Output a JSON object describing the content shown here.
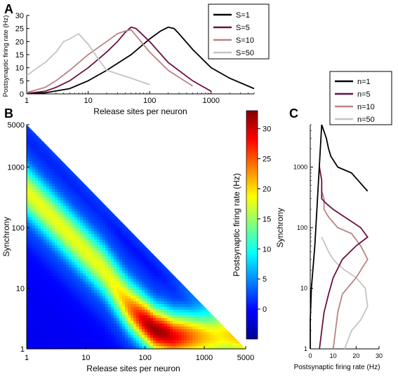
{
  "chart_data": [
    {
      "id": "A",
      "type": "line",
      "panel_label": "A",
      "xlabel": "Release sites per neuron",
      "ylabel": "Postsynaptic firing rate (Hz)",
      "x_scale": "log",
      "xlim": [
        1,
        5000
      ],
      "ylim": [
        0,
        30
      ],
      "xticks": [
        1,
        10,
        100,
        1000
      ],
      "yticks": [
        0,
        5,
        10,
        15,
        20,
        25,
        30
      ],
      "legend_position": "top-right",
      "series": [
        {
          "name": "S=1",
          "color": "#000000",
          "x": [
            1,
            2,
            5,
            10,
            20,
            50,
            100,
            150,
            200,
            250,
            300,
            500,
            1000,
            2000,
            5000
          ],
          "y": [
            0.1,
            0.4,
            2,
            5,
            9,
            15,
            21,
            24,
            25.5,
            25,
            23,
            17,
            10,
            6,
            2
          ]
        },
        {
          "name": "S=5",
          "color": "#6b1040",
          "x": [
            1,
            2,
            3,
            5,
            10,
            20,
            30,
            40,
            50,
            60,
            100,
            200,
            500,
            1000
          ],
          "y": [
            0.2,
            1,
            2.5,
            5,
            10,
            16,
            20,
            23.5,
            25.5,
            25,
            20,
            12,
            5,
            1
          ]
        },
        {
          "name": "S=10",
          "color": "#b88484",
          "x": [
            1,
            2,
            3,
            5,
            10,
            20,
            30,
            40,
            50,
            100,
            200,
            500
          ],
          "y": [
            0.5,
            2.5,
            5,
            9,
            15,
            20,
            23,
            24,
            24.5,
            16,
            9,
            3
          ]
        },
        {
          "name": "S=50",
          "color": "#c4c4c4",
          "x": [
            1,
            1.5,
            2,
            3,
            4,
            5,
            7,
            10,
            15,
            20,
            50,
            100
          ],
          "y": [
            7,
            10,
            12,
            16,
            20,
            21,
            23,
            19,
            13,
            9,
            6,
            3.5
          ]
        }
      ]
    },
    {
      "id": "B",
      "type": "heatmap",
      "panel_label": "B",
      "xlabel": "Release sites per neuron",
      "ylabel": "Synchrony",
      "colorbar_label": "Postsynaptic firing rate (Hz)",
      "x_scale": "log",
      "y_scale": "log",
      "xlim": [
        1,
        5000
      ],
      "ylim": [
        1,
        5000
      ],
      "xticks": [
        "1",
        "10",
        "100",
        "1000",
        "5000"
      ],
      "yticks": [
        "1",
        "10",
        "100",
        "1000",
        "5000"
      ],
      "colorbar_ticks": [
        0,
        5,
        10,
        15,
        20,
        25,
        30
      ],
      "colorbar_range": [
        -5,
        33
      ],
      "colormap": "jet",
      "domain": "release sites × synchrony ≤ 5000 (lower-left triangle)",
      "ridge": {
        "x": [
          1,
          2,
          5,
          10,
          20,
          50,
          100,
          150,
          200,
          300
        ],
        "y": [
          400,
          200,
          80,
          40,
          20,
          6,
          3,
          2,
          1.8,
          1.5
        ]
      },
      "peak": {
        "x": 150,
        "y": 2,
        "value": 31
      }
    },
    {
      "id": "C",
      "type": "line",
      "panel_label": "C",
      "xlabel": "Postsynaptic firing rate (Hz)",
      "ylabel": "Synchrony",
      "y_scale": "log",
      "xlim": [
        0,
        30
      ],
      "ylim": [
        1,
        5000
      ],
      "xticks": [
        0,
        10,
        20,
        30
      ],
      "yticks": [
        1,
        10,
        100,
        1000
      ],
      "legend_position": "top-right",
      "series": [
        {
          "name": "n=1",
          "color": "#000000",
          "x": [
            25,
            18,
            12,
            9,
            8,
            7,
            5,
            2,
            0.5,
            0,
            0
          ],
          "y": [
            400,
            800,
            1000,
            1500,
            2000,
            3000,
            5000,
            50,
            10,
            3,
            1
          ]
        },
        {
          "name": "n=5",
          "color": "#6b1040",
          "x": [
            4,
            5,
            5,
            7,
            10,
            15,
            22,
            25,
            20,
            14,
            10,
            8,
            6,
            4
          ],
          "y": [
            1000,
            600,
            300,
            250,
            200,
            150,
            100,
            70,
            50,
            30,
            15,
            8,
            4,
            1
          ]
        },
        {
          "name": "n=10",
          "color": "#b88484",
          "x": [
            5,
            6,
            6,
            8,
            12,
            18,
            22,
            25,
            20,
            14,
            12,
            10
          ],
          "y": [
            400,
            300,
            200,
            150,
            100,
            80,
            50,
            30,
            15,
            8,
            4,
            1
          ]
        },
        {
          "name": "n=50",
          "color": "#c4c4c4",
          "x": [
            5,
            8,
            10,
            12,
            15,
            20,
            24,
            25,
            22,
            18,
            15
          ],
          "y": [
            70,
            40,
            30,
            25,
            20,
            15,
            10,
            5,
            3,
            2,
            1
          ]
        }
      ]
    }
  ]
}
